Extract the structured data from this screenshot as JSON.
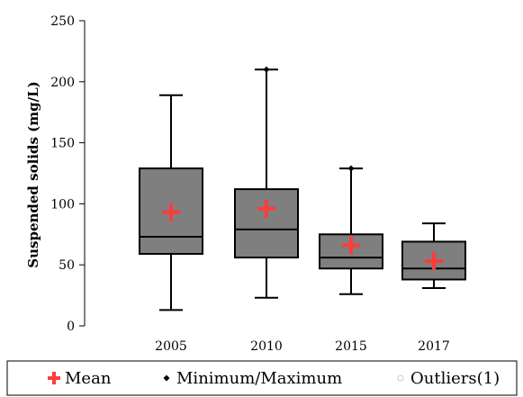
{
  "chart_data": {
    "type": "box",
    "title": "",
    "xlabel": "",
    "ylabel": "Suspended solids (mg/L)",
    "ylim": [
      0,
      250
    ],
    "yticks": [
      0,
      50,
      100,
      150,
      200,
      250
    ],
    "categories": [
      "2005",
      "2010",
      "2015",
      "2017"
    ],
    "series": [
      {
        "category": "2005",
        "min": 13,
        "q1": 59,
        "median": 73,
        "q3": 129,
        "max": 189,
        "mean": 93
      },
      {
        "category": "2010",
        "min": 23,
        "q1": 56,
        "median": 79,
        "q3": 112,
        "max": 210,
        "mean": 96
      },
      {
        "category": "2015",
        "min": 26,
        "q1": 47,
        "median": 56,
        "q3": 75,
        "max": 129,
        "mean": 66
      },
      {
        "category": "2017",
        "min": 31,
        "q1": 38,
        "median": 47,
        "q3": 69,
        "max": 84,
        "mean": 53
      }
    ],
    "extreme_points": [
      {
        "category": "2010",
        "value": 210
      },
      {
        "category": "2015",
        "value": 129
      }
    ],
    "legend": {
      "placement": "bottom",
      "items": [
        {
          "label": "Mean",
          "marker": "plus",
          "color": "#ff3b3b"
        },
        {
          "label": "Minimum/Maximum",
          "marker": "diamond",
          "color": "#000000"
        },
        {
          "label": "Outliers(1)",
          "marker": "circle",
          "color": "#cccccc"
        }
      ]
    },
    "colors": {
      "box_fill": "#7f7f7f",
      "mean_marker": "#ff3b3b",
      "lines": "#000000"
    },
    "grid": false
  }
}
